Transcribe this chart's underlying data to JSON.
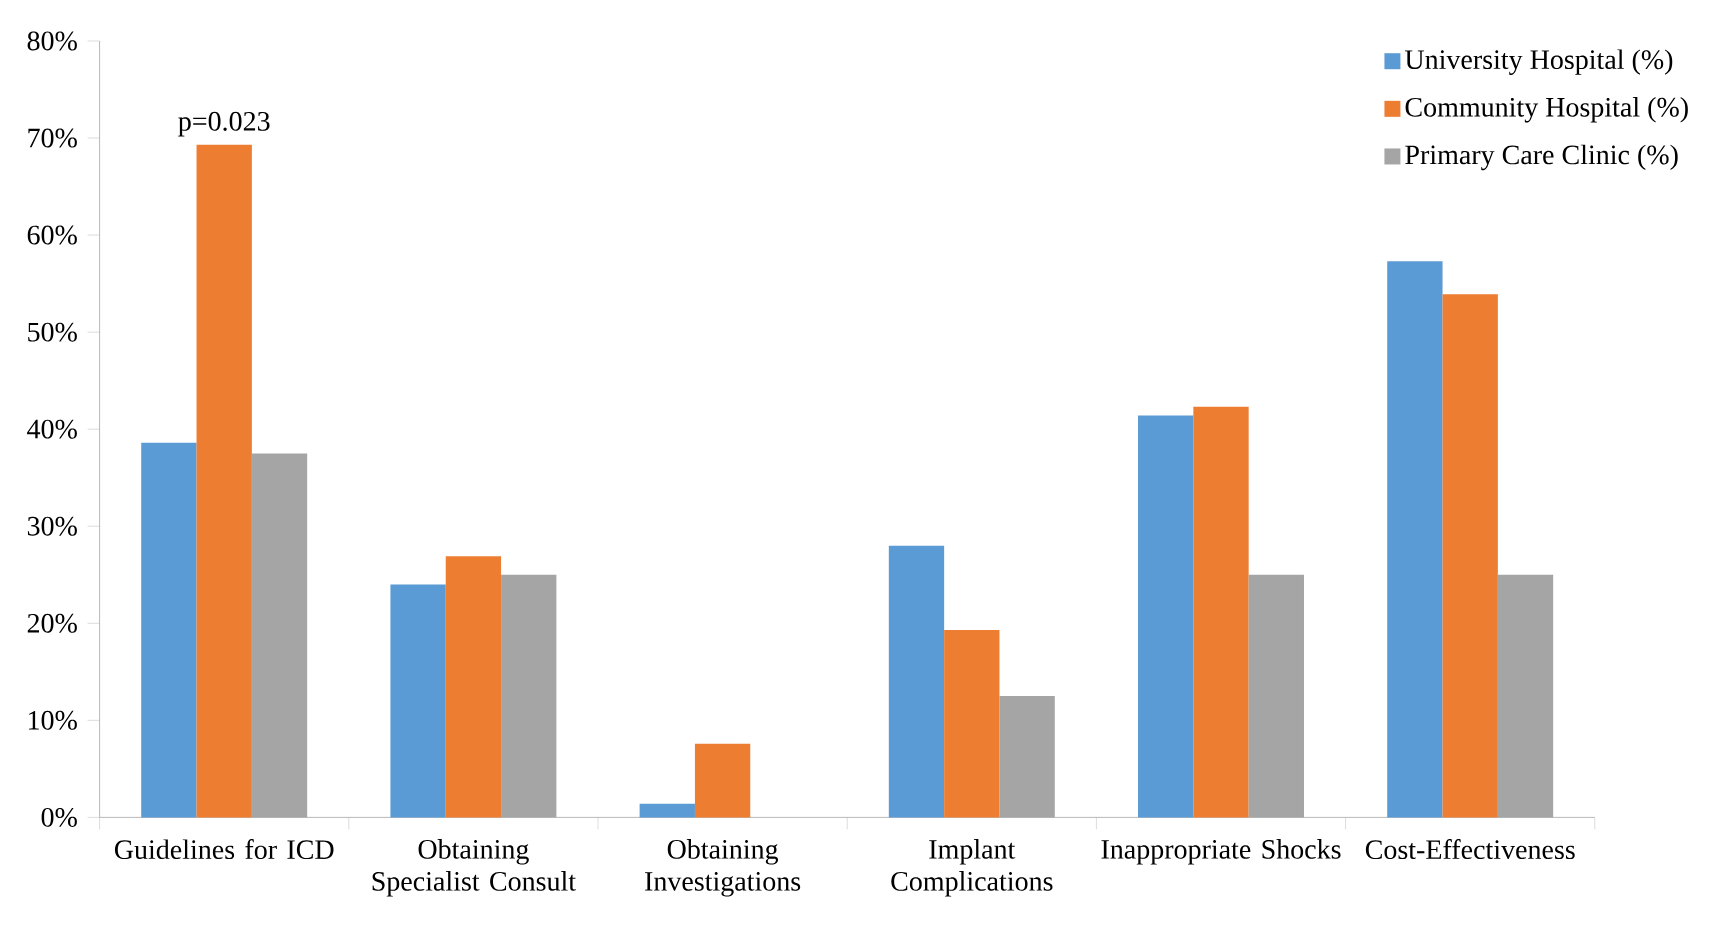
{
  "chart_data": {
    "type": "bar",
    "categories": [
      "Guidelines for ICD",
      "Obtaining Specialist Consult",
      "Obtaining Investigations",
      "Implant Complications",
      "Inappropriate Shocks",
      "Cost-Effectiveness"
    ],
    "series": [
      {
        "name": "University Hospital (%)",
        "color": "#5b9bd5",
        "values": [
          38.6,
          24.0,
          1.4,
          28.0,
          41.4,
          57.3
        ]
      },
      {
        "name": "Community Hospital (%)",
        "color": "#ed7d31",
        "values": [
          69.3,
          26.9,
          7.6,
          19.3,
          42.3,
          53.9
        ]
      },
      {
        "name": "Primary Care Clinic (%)",
        "color": "#a5a5a5",
        "values": [
          37.5,
          25.0,
          0,
          12.5,
          25.0,
          25.0
        ]
      }
    ],
    "ylim": [
      0,
      80
    ],
    "yticks": [
      {
        "value": 0,
        "label": "0%"
      },
      {
        "value": 10,
        "label": "10%"
      },
      {
        "value": 20,
        "label": "20%"
      },
      {
        "value": 30,
        "label": "30%"
      },
      {
        "value": 40,
        "label": "40%"
      },
      {
        "value": 50,
        "label": "50%"
      },
      {
        "value": 60,
        "label": "60%"
      },
      {
        "value": 70,
        "label": "70%"
      },
      {
        "value": 80,
        "label": "80%"
      }
    ],
    "annotations": [
      {
        "text": "p=0.023",
        "x": "Guidelines for ICD",
        "y": 69.3
      }
    ],
    "grid": false,
    "legend": "top right"
  }
}
